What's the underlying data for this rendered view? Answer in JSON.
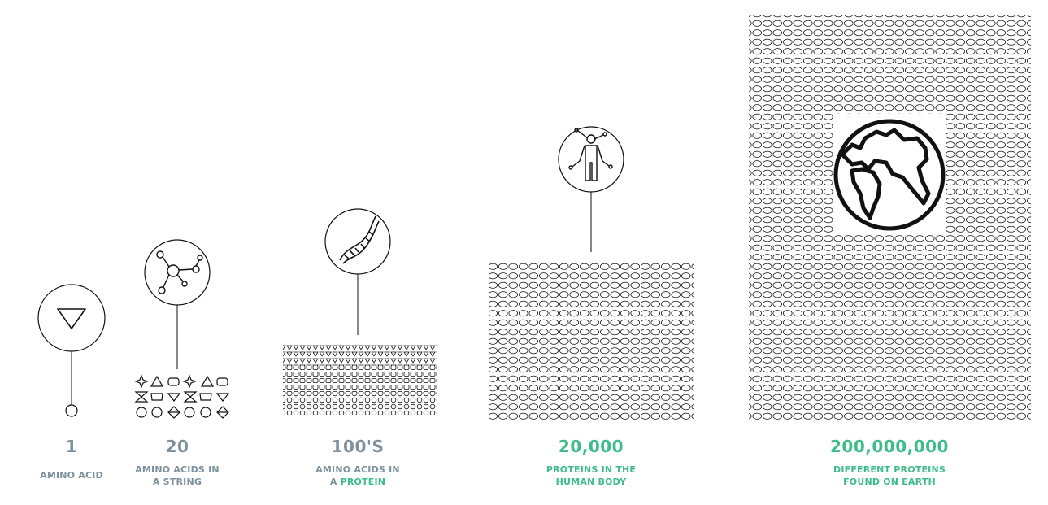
{
  "colors": {
    "grey": "#7d909d",
    "green": "#3ebd8a",
    "ink": "#111111"
  },
  "stages": [
    {
      "number": "1",
      "caption_line1": "AMINO ACID",
      "caption_line2": "",
      "caption_line2_highlight": "",
      "color": "grey",
      "icon": "triangle-icon"
    },
    {
      "number": "20",
      "caption_line1": "AMINO ACIDS IN",
      "caption_line2": "A STRING",
      "caption_line2_highlight": "",
      "color": "grey",
      "icon": "molecule-icon"
    },
    {
      "number": "100'S",
      "caption_line1": "AMINO ACIDS IN",
      "caption_line2": "A ",
      "caption_line2_highlight": "PROTEIN",
      "color": "grey",
      "icon": "dna-icon"
    },
    {
      "number": "20,000",
      "caption_line1": "PROTEINS IN THE",
      "caption_line2": "HUMAN BODY",
      "caption_line2_highlight": "",
      "color": "green",
      "icon": "human-body-icon"
    },
    {
      "number": "200,000,000",
      "caption_line1": "DIFFERENT PROTEINS",
      "caption_line2": "FOUND ON EARTH",
      "caption_line2_highlight": "",
      "color": "green",
      "icon": "earth-icon"
    }
  ]
}
